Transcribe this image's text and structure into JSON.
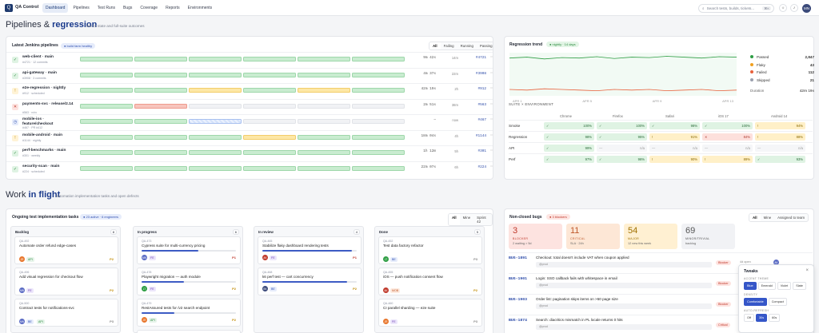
{
  "app": {
    "name": "QA Control",
    "logo": "Q"
  },
  "nav": [
    "Dashboard",
    "Pipelines",
    "Test Runs",
    "Bugs",
    "Coverage",
    "Reports",
    "Environments"
  ],
  "search": {
    "placeholder": "Search tests, builds, tickets...",
    "kbd": "⌘K"
  },
  "user": {
    "initials": "MN"
  },
  "section1": {
    "title_pre": "Pipelines & ",
    "title_em": "regression",
    "sub": "live CI state and full-suite outcomes"
  },
  "jenkins": {
    "title": "Latest Jenkins pipelines",
    "badge": "build farm healthy",
    "filters": [
      "All",
      "Failing",
      "Running",
      "Passing"
    ],
    "pipelines": [
      {
        "name": "web-client · main",
        "sub": "#4721 · 12 commits",
        "status": "ok",
        "icon": "✓",
        "stages": [
          "g",
          "g",
          "g",
          "g",
          "g",
          "g"
        ],
        "dur": "9m 42s",
        "ago": "14m",
        "build": "#4721"
      },
      {
        "name": "api-gateway · main",
        "sub": "#3908 · 3 commits",
        "status": "ok",
        "icon": "✓",
        "stages": [
          "g",
          "g",
          "g",
          "g",
          "g",
          "g"
        ],
        "dur": "4m 37s",
        "ago": "22m",
        "build": "#3908"
      },
      {
        "name": "e2e-regression · nightly",
        "sub": "#912 · scheduled",
        "status": "warn",
        "icon": "!",
        "stages": [
          "g",
          "g",
          "y",
          "g",
          "y",
          "g"
        ],
        "dur": "42m 19s",
        "ago": "2h",
        "build": "#912"
      },
      {
        "name": "payments-svc · release/2.14",
        "sub": "#563 · rc/rc",
        "status": "fail",
        "icon": "✕",
        "stages": [
          "g",
          "r",
          "e",
          "e",
          "e",
          "e"
        ],
        "dur": "2m 51s",
        "ago": "38m",
        "build": "#563"
      },
      {
        "name": "mobile-ios · feature/checkout",
        "sub": "#467 · PR #412",
        "status": "run",
        "icon": "◷",
        "stages": [
          "g",
          "g",
          "b",
          "e",
          "e",
          "e"
        ],
        "dur": "—",
        "ago": "now",
        "build": "#467"
      },
      {
        "name": "mobile-android · main",
        "sub": "#1144 · nightly",
        "status": "warn",
        "icon": "!",
        "stages": [
          "g",
          "g",
          "g",
          "y",
          "g",
          "g"
        ],
        "dur": "18m 04s",
        "ago": "4h",
        "build": "#1144"
      },
      {
        "name": "perf-benchmarks · main",
        "sub": "#301 · weekly",
        "status": "ok",
        "icon": "✓",
        "stages": [
          "g",
          "g",
          "g",
          "g",
          "g",
          "g"
        ],
        "dur": "1h 12m",
        "ago": "5h",
        "build": "#301"
      },
      {
        "name": "security-scan · main",
        "sub": "#224 · scheduled",
        "status": "ok",
        "icon": "✓",
        "stages": [
          "g",
          "g",
          "g",
          "g",
          "g",
          "g"
        ],
        "dur": "22m 07s",
        "ago": "6h",
        "build": "#224"
      }
    ]
  },
  "trend": {
    "title": "Regression trend",
    "badge": "nightly · 14 days",
    "chart_data": {
      "type": "area",
      "series": [
        {
          "name": "Passed",
          "values": [
            0.88,
            0.9,
            0.86,
            0.89,
            0.88,
            0.91,
            0.87,
            0.9,
            0.89,
            0.92,
            0.9,
            0.88,
            0.91,
            0.9
          ]
        },
        {
          "name": "Failed",
          "values": [
            0.05,
            0.04,
            0.06,
            0.05,
            0.04,
            0.03,
            0.05,
            0.04,
            0.05,
            0.03,
            0.04,
            0.05,
            0.03,
            0.04
          ]
        }
      ],
      "x": [
        "APR 1",
        "APR 2",
        "APR 3",
        "APR 4",
        "APR 5",
        "APR 6",
        "APR 7",
        "APR 8",
        "APR 9",
        "APR 10",
        "APR 11",
        "APR 12",
        "APR 13",
        "APR 14"
      ]
    },
    "legend": [
      {
        "label": "Passed",
        "value": "2,847",
        "color": "#2f9e44"
      },
      {
        "label": "Flaky",
        "value": "43",
        "color": "#f0a020"
      },
      {
        "label": "Failed",
        "value": "112",
        "color": "#e8613c"
      },
      {
        "label": "Skipped",
        "value": "21",
        "color": "#9aa0ae"
      }
    ],
    "duration_label": "Duration",
    "duration_value": "42m 19s"
  },
  "matrix": {
    "title": "SUITE × ENVIRONMENT",
    "cols": [
      "Chrome",
      "Firefox",
      "Safari",
      "iOS 17",
      "Android 14"
    ],
    "rows": [
      {
        "label": "Smoke",
        "cells": [
          [
            "g",
            "✓",
            "100%"
          ],
          [
            "g",
            "✓",
            "100%"
          ],
          [
            "g",
            "✓",
            "98%"
          ],
          [
            "g",
            "✓",
            "100%"
          ],
          [
            "y",
            "!",
            "94%"
          ]
        ]
      },
      {
        "label": "Regression",
        "cells": [
          [
            "g",
            "✓",
            "98%"
          ],
          [
            "g",
            "✓",
            "95%"
          ],
          [
            "y",
            "!",
            "91%"
          ],
          [
            "r",
            "✕",
            "84%"
          ],
          [
            "y",
            "!",
            "88%"
          ]
        ]
      },
      {
        "label": "API",
        "cells": [
          [
            "g",
            "✓",
            "99%"
          ],
          [
            "n",
            "—",
            "n/a"
          ],
          [
            "n",
            "—",
            "n/a"
          ],
          [
            "n",
            "—",
            "n/a"
          ],
          [
            "n",
            "—",
            "n/a"
          ]
        ]
      },
      {
        "label": "Perf",
        "cells": [
          [
            "g",
            "✓",
            "97%"
          ],
          [
            "g",
            "✓",
            "96%"
          ],
          [
            "y",
            "!",
            "90%"
          ],
          [
            "y",
            "!",
            "89%"
          ],
          [
            "g",
            "✓",
            "93%"
          ]
        ]
      }
    ]
  },
  "section2": {
    "title_pre": "Work ",
    "title_em": "in flight",
    "sub": "automation implementation tasks and open defects"
  },
  "tasks": {
    "title": "Ongoing test implementation tasks",
    "badge": "23 active · 6 engineers",
    "filters": [
      "All",
      "Mine",
      "Sprint 42"
    ],
    "columns": [
      {
        "name": "Backlog",
        "count": "8",
        "cards": [
          {
            "id": "QA-492",
            "title": "Automate order refund edge-cases",
            "av": "JR",
            "avc": "#e8762c",
            "tags": [
              [
                "API",
                "#e6f4ea",
                "#2b8a3e"
              ]
            ],
            "pri": "P2",
            "pc": "#c08a00",
            "prog": null
          },
          {
            "id": "QA-496",
            "title": "Add visual regression for checkout flow",
            "av": "MN",
            "avc": "#5a6bc4",
            "tags": [
              [
                "FE",
                "#ece6fb",
                "#6a3ab0"
              ]
            ],
            "pri": "P2",
            "pc": "#c08a00",
            "prog": null
          },
          {
            "id": "QA-500",
            "title": "Contract tests for notifications-svc",
            "av": "MN",
            "avc": "#5a6bc4",
            "tags": [
              [
                "BE",
                "#e6ecfb",
                "#3050b0"
              ],
              [
                "API",
                "#e6f4ea",
                "#2b8a3e"
              ]
            ],
            "pri": "P3",
            "pc": "#888",
            "prog": null
          }
        ]
      },
      {
        "name": "In progress",
        "count": "6",
        "cards": [
          {
            "id": "QA-473",
            "title": "Cypress suite for multi-currency pricing",
            "av": "MN",
            "avc": "#5a6bc4",
            "tags": [
              [
                "FE",
                "#ece6fb",
                "#6a3ab0"
              ]
            ],
            "pri": "P1",
            "pc": "#c0392b",
            "prog": 0.6
          },
          {
            "id": "QA-478",
            "title": "Playwright migration — auth module",
            "av": "LT",
            "avc": "#2f9e44",
            "tags": [
              [
                "FE",
                "#ece6fb",
                "#6a3ab0"
              ]
            ],
            "pri": "P2",
            "pc": "#c08a00",
            "prog": 0.45
          },
          {
            "id": "QA-479",
            "title": "RestAssured tests for /v2 search endpoint",
            "av": "JR",
            "avc": "#e8762c",
            "tags": [
              [
                "API",
                "#e6f4ea",
                "#2b8a3e"
              ]
            ],
            "pri": "P2",
            "pc": "#c08a00",
            "prog": 0.35
          }
        ]
      },
      {
        "name": "In review",
        "count": "4",
        "cards": [
          {
            "id": "QA-465",
            "title": "Stabilize flaky dashboard rendering tests",
            "av": "AK",
            "avc": "#c0392b",
            "tags": [
              [
                "FE",
                "#ece6fb",
                "#6a3ab0"
              ]
            ],
            "pri": "P1",
            "pc": "#c0392b",
            "prog": 0.95
          },
          {
            "id": "QA-468",
            "title": "k6 perf test — cart concurrency",
            "av": "BK",
            "avc": "#3b4a7a",
            "tags": [
              [
                "BE",
                "#e6ecfb",
                "#3050b0"
              ]
            ],
            "pri": "P2",
            "pc": "#c08a00",
            "prog": 0.9
          }
        ]
      },
      {
        "name": "Done",
        "count": "5",
        "cards": [
          {
            "id": "QA-452",
            "title": "Test data factory refactor",
            "av": "LT",
            "avc": "#2f9e44",
            "tags": [
              [
                "BE",
                "#e6ecfb",
                "#3050b0"
              ]
            ],
            "pri": "P3",
            "pc": "#888",
            "prog": null
          },
          {
            "id": "QA-455",
            "title": "iOS — push notification consent flow",
            "av": "AK",
            "avc": "#c0392b",
            "tags": [
              [
                "MOB",
                "#fdeadf",
                "#c0592b"
              ]
            ],
            "pri": "P2",
            "pc": "#c08a00",
            "prog": null
          },
          {
            "id": "QA-460",
            "title": "CI parallel sharding — e2e suite",
            "av": "JR",
            "avc": "#e8762c",
            "tags": [
              [
                "FE",
                "#ece6fb",
                "#6a3ab0"
              ]
            ],
            "pri": "P3",
            "pc": "#888",
            "prog": null
          }
        ]
      }
    ],
    "more_card": {
      "id": "QA-481",
      "title": "Android regression — biometric login"
    }
  },
  "bugs": {
    "title": "Non-closed bugs",
    "badge": "3 blockers",
    "filters": [
      "All",
      "Mine",
      "Assigned to team"
    ],
    "severity": [
      {
        "n": "3",
        "l": "BLOCKER",
        "s": "2 waiting > 5d",
        "bg": "#fde3e0",
        "fg": "#c0392b"
      },
      {
        "n": "11",
        "l": "CRITICAL",
        "s": "SLA · 24h",
        "bg": "#fde7d6",
        "fg": "#c0592b"
      },
      {
        "n": "54",
        "l": "MAJOR",
        "s": "12 new this week",
        "bg": "#fff0d2",
        "fg": "#a07000"
      },
      {
        "n": "69",
        "l": "MINOR/TRIVIAL",
        "s": "backlog",
        "bg": "#f1f2f5",
        "fg": "#555"
      }
    ],
    "items": [
      {
        "id": "BUG-1891",
        "title": "Checkout: total doesn't include VAT when coupon applied",
        "sub": "@prod",
        "sev": "Blocker",
        "ago": "4d open"
      },
      {
        "id": "BUG-1901",
        "title": "Login: SSO callback fails with whitespace in email",
        "sub": "@prod",
        "sev": "Blocker",
        "ago": ""
      },
      {
        "id": "BUG-1903",
        "title": "Order list: pagination skips items on >50 page size",
        "sub": "@prod",
        "sev": "Blocker",
        "ago": ""
      },
      {
        "id": "BUG-1874",
        "title": "Search: diacritics mismatch in PL locale returns 0 hits",
        "sub": "@prod",
        "sev": "Critical",
        "ago": ""
      }
    ],
    "assignee": "AK"
  },
  "tweaks": {
    "title": "Tweaks",
    "accent_label": "ACCENT THEME",
    "accents": [
      "Blue",
      "Emerald",
      "Violet",
      "Slate"
    ],
    "density_label": "DENSITY",
    "densities": [
      "Comfortable",
      "Compact"
    ],
    "refresh_label": "AUTO-REFRESH",
    "refresh": [
      "Off",
      "30s",
      "60s"
    ]
  }
}
